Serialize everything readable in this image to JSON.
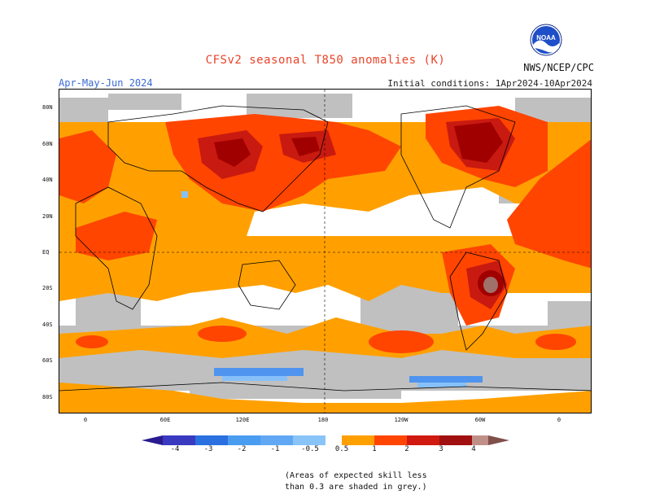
{
  "header": {
    "title": "CFSv2 seasonal T850 anomalies (K)",
    "season": "Apr-May-Jun 2024",
    "initial_conditions": "Initial conditions: 1Apr2024-10Apr2024",
    "agency": "NWS/NCEP/CPC",
    "logo_text": "NOAA"
  },
  "map": {
    "lat_labels": [
      "80N",
      "60N",
      "40N",
      "20N",
      "EQ",
      "20S",
      "40S",
      "60S",
      "80S"
    ],
    "lon_labels": [
      "0",
      "60E",
      "120E",
      "180",
      "120W",
      "60W",
      "0"
    ],
    "colors": {
      "land": "#000000",
      "grey_skill": "#c0c0c0",
      "anom_0_5_1": "#ffa000",
      "anom_1_2": "#ff4500",
      "anom_2_3": "#c81a10",
      "anom_3_4": "#a00000",
      "anom_4_plus": "#a0706a",
      "neg_0_5_1": "#87c0f8",
      "neg_1_2": "#4f94ee",
      "neg_2_3": "#2860d8",
      "neg_3_4": "#3030b0"
    }
  },
  "colorbar": {
    "labels": [
      "-4",
      "-3",
      "-2",
      "-1",
      "-0.5",
      "0.5",
      "1",
      "2",
      "3",
      "4"
    ],
    "colors": [
      "#2a1a90",
      "#3a3ac0",
      "#2a70e0",
      "#4a9cf0",
      "#88c4f8",
      "#ffffff",
      "#ffa000",
      "#ff4500",
      "#d01a10",
      "#a01010",
      "#c09088",
      "#80504a"
    ]
  },
  "note": {
    "line1": "(Areas of expected skill less",
    "line2": "than 0.3 are shaded in grey.)"
  }
}
